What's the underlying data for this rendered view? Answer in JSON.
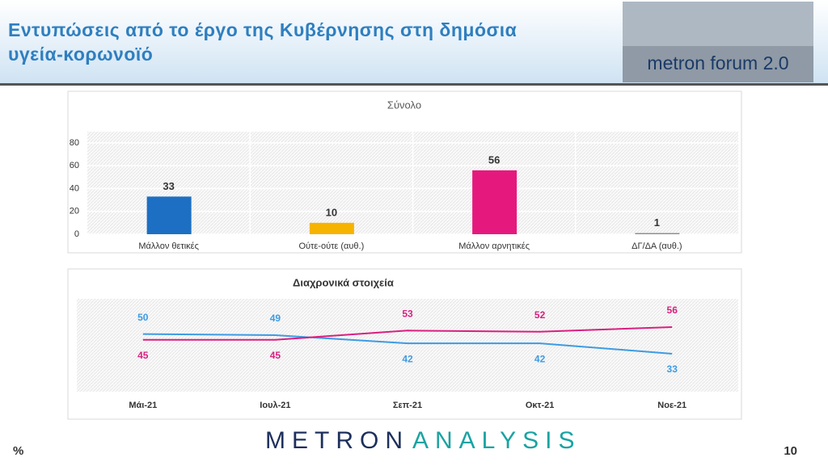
{
  "header": {
    "title": "Εντυπώσεις από το έργο της Κυβέρνησης στη δημόσια υγεία-κορωνοϊό",
    "logo": "metron forum 2.0"
  },
  "chart_data": [
    {
      "type": "bar",
      "title": "Σύνολο",
      "categories": [
        "Μάλλον θετικές",
        "Ούτε-ούτε (αυθ.)",
        "Μάλλον αρνητικές",
        "ΔΓ/ΔΑ (αυθ.)"
      ],
      "values": [
        33,
        10,
        56,
        1
      ],
      "colors": [
        "#1c6fc2",
        "#f6b400",
        "#e5197d",
        "#8c8c8c"
      ],
      "ylim": [
        0,
        80
      ],
      "yticks": [
        0,
        20,
        40,
        60,
        80
      ],
      "grid": true
    },
    {
      "type": "line",
      "title": "Διαχρονικά στοιχεία",
      "categories": [
        "Μάι-21",
        "Ιουλ-21",
        "Σεπ-21",
        "Οκτ-21",
        "Νοε-21"
      ],
      "series": [
        {
          "color": "#3d9be3",
          "values": [
            50,
            49,
            42,
            42,
            33
          ]
        },
        {
          "color": "#d91f80",
          "values": [
            45,
            45,
            53,
            52,
            56
          ]
        }
      ]
    }
  ],
  "footer": {
    "unit": "%",
    "brand": [
      "METRON",
      "ANALYSIS"
    ],
    "page": "10"
  }
}
